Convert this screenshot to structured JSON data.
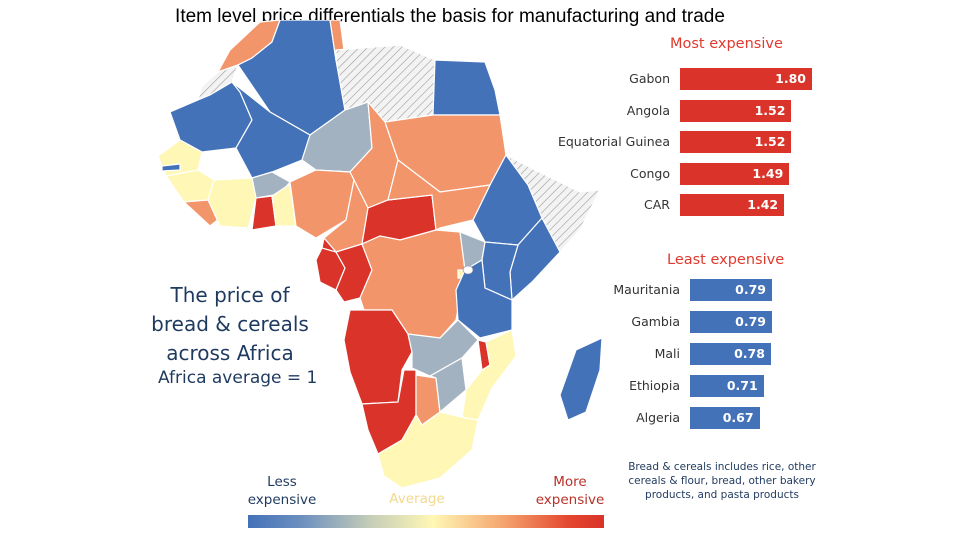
{
  "title": "Item level price differentials the basis for manufacturing and trade",
  "colors": {
    "more_expensive": "#d9332a",
    "expensive": "#f2956a",
    "average": "#fff7b6",
    "less_expensive": "#4472b8",
    "neutral": "#a3b2c0",
    "no_data": "#eeeeee"
  },
  "map_text": {
    "headline": "The price of bread & cereals across Africa",
    "average_note": "Africa average = 1"
  },
  "legend": {
    "less": "Less expensive",
    "average": "Average",
    "more": "More expensive"
  },
  "note": "Bread & cereals includes rice, other cereals & flour, bread, other bakery products, and pasta products",
  "chart_data": [
    {
      "type": "bar",
      "title": "Most expensive",
      "orientation": "horizontal",
      "categories": [
        "Gabon",
        "Angola",
        "Equatorial Guinea",
        "Congo",
        "CAR"
      ],
      "values": [
        1.8,
        1.52,
        1.52,
        1.49,
        1.42
      ],
      "value_labels": [
        "1.80",
        "1.52",
        "1.52",
        "1.49",
        "1.42"
      ],
      "color": "#d9332a",
      "xlim": [
        0,
        1.8
      ]
    },
    {
      "type": "bar",
      "title": "Least expensive",
      "orientation": "horizontal",
      "categories": [
        "Mauritania",
        "Gambia",
        "Mali",
        "Ethiopia",
        "Algeria"
      ],
      "values": [
        0.79,
        0.79,
        0.78,
        0.71,
        0.67
      ],
      "value_labels": [
        "0.79",
        "0.79",
        "0.78",
        "0.71",
        "0.67"
      ],
      "color": "#4472b8",
      "xlim": [
        0,
        0.79
      ]
    }
  ]
}
